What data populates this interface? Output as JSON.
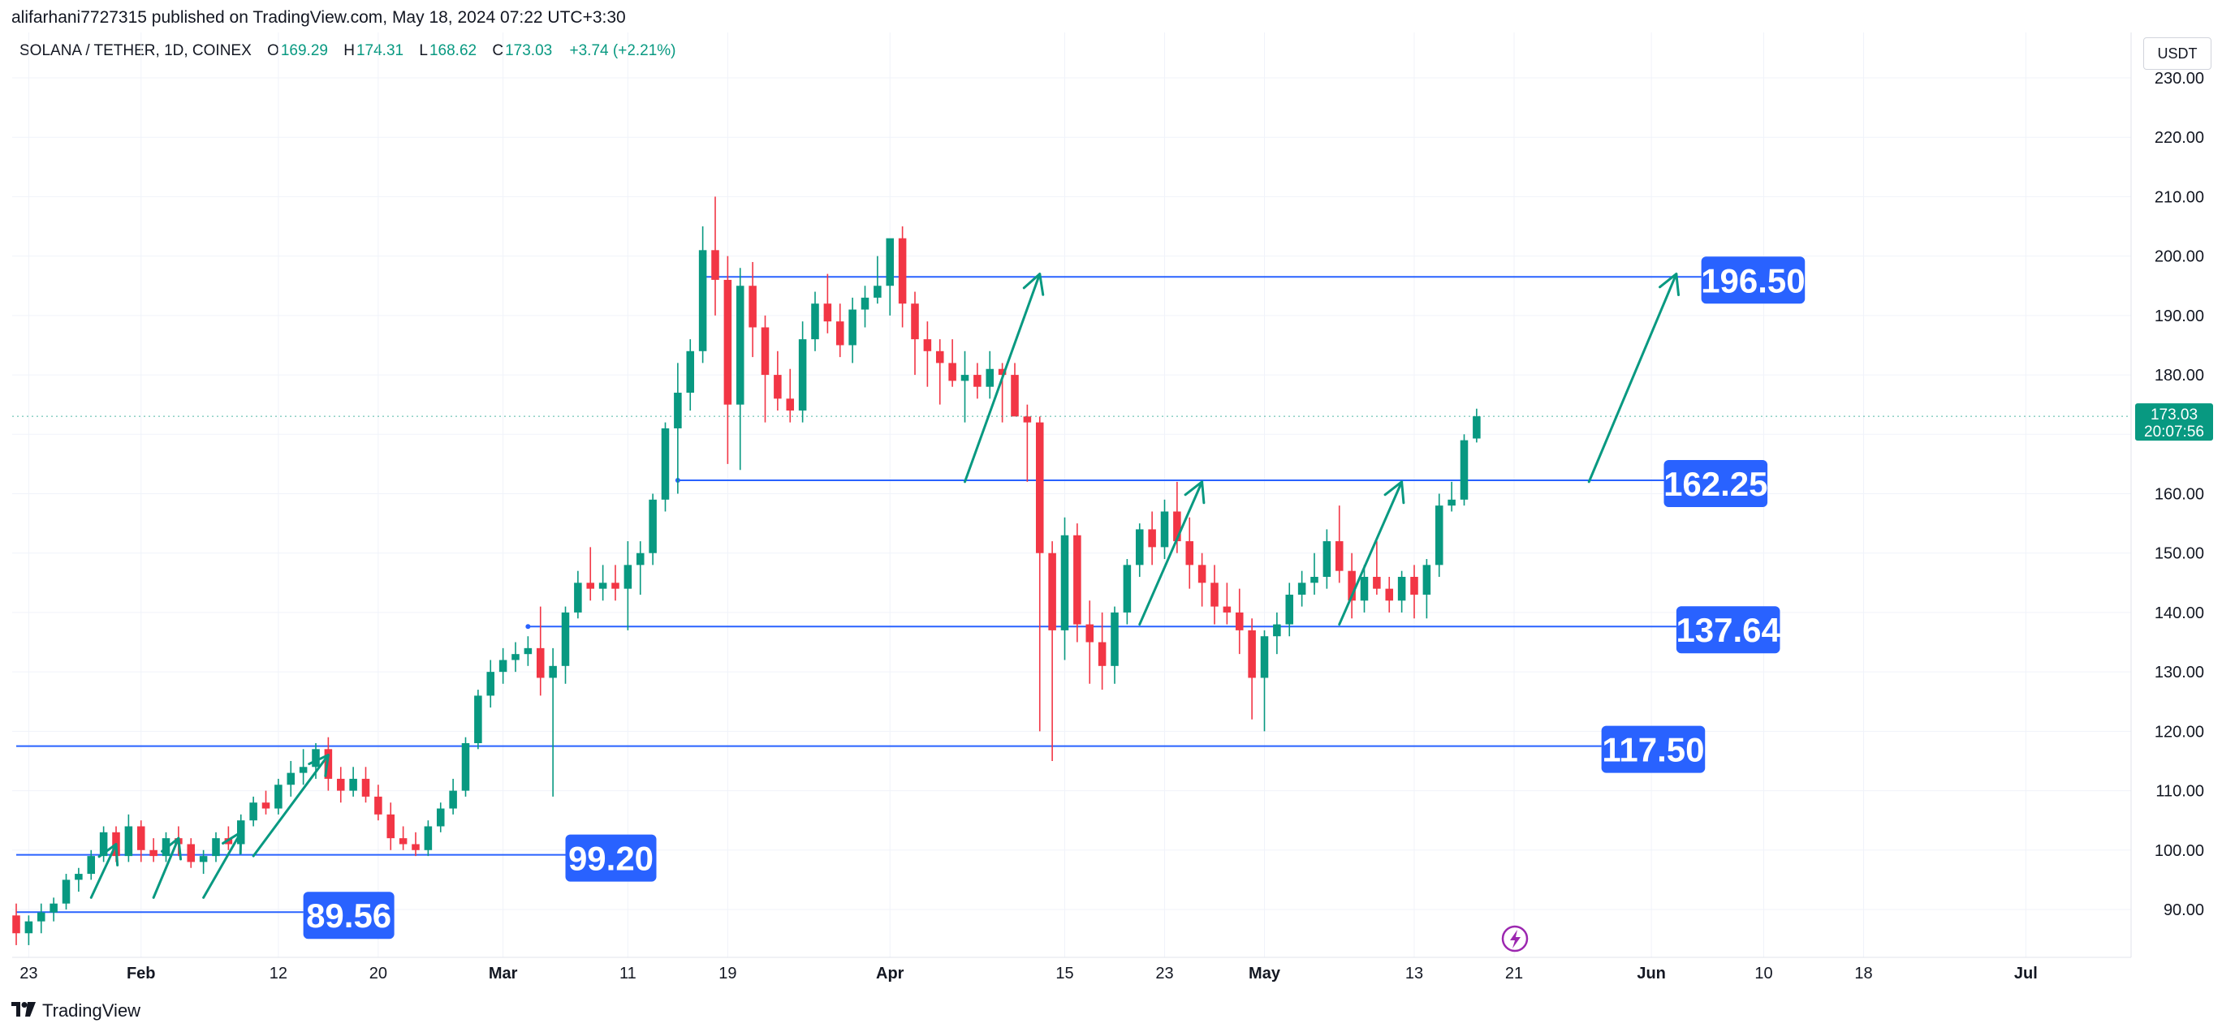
{
  "header": {
    "published": "alifarhani7727315 published on TradingView.com, May 18, 2024 07:22 UTC+3:30"
  },
  "legend": {
    "symbol": "SOLANA / TETHER, 1D, COINEX",
    "o_label": "O",
    "o": "169.29",
    "h_label": "H",
    "h": "174.31",
    "l_label": "L",
    "l": "168.62",
    "c_label": "C",
    "c": "173.03",
    "change": "+3.74 (+2.21%)"
  },
  "currency": "USDT",
  "price_tag": {
    "price": "173.03",
    "countdown": "20:07:56"
  },
  "footer": {
    "brand": "TradingView",
    "logo": "tradingview-logo"
  },
  "colors": {
    "up": "#089981",
    "down": "#f23645",
    "level_line": "#2962ff",
    "label_bg": "#2962ff",
    "arrow": "#089981",
    "grid": "#f0f3fa"
  },
  "chart_data": {
    "type": "candlestick",
    "ylim": [
      84,
      232
    ],
    "xlim": [
      "2024-01-22",
      "2024-07-08"
    ],
    "y_ticks": [
      "90.00",
      "100.00",
      "110.00",
      "120.00",
      "130.00",
      "140.00",
      "150.00",
      "160.00",
      "170.00",
      "180.00",
      "190.00",
      "200.00",
      "210.00",
      "220.00",
      "230.00"
    ],
    "x_ticks": [
      {
        "date": "2024-01-23",
        "label": "23"
      },
      {
        "date": "2024-02-01",
        "label": "Feb"
      },
      {
        "date": "2024-02-12",
        "label": "12"
      },
      {
        "date": "2024-02-20",
        "label": "20"
      },
      {
        "date": "2024-03-01",
        "label": "Mar"
      },
      {
        "date": "2024-03-11",
        "label": "11"
      },
      {
        "date": "2024-03-19",
        "label": "19"
      },
      {
        "date": "2024-04-01",
        "label": "Apr"
      },
      {
        "date": "2024-04-15",
        "label": "15"
      },
      {
        "date": "2024-04-23",
        "label": "23"
      },
      {
        "date": "2024-05-01",
        "label": "May"
      },
      {
        "date": "2024-05-13",
        "label": "13"
      },
      {
        "date": "2024-05-21",
        "label": "21"
      },
      {
        "date": "2024-06-01",
        "label": "Jun"
      },
      {
        "date": "2024-06-10",
        "label": "10"
      },
      {
        "date": "2024-06-18",
        "label": "18"
      },
      {
        "date": "2024-07-01",
        "label": "Jul"
      }
    ],
    "ohlc": [
      [
        "2024-01-22",
        89,
        91,
        84,
        86
      ],
      [
        "2024-01-23",
        86,
        89,
        84,
        88
      ],
      [
        "2024-01-24",
        88,
        91,
        86,
        89.5
      ],
      [
        "2024-01-25",
        89.5,
        92,
        88,
        91
      ],
      [
        "2024-01-26",
        91,
        96,
        90,
        95
      ],
      [
        "2024-01-27",
        95,
        97,
        93,
        96
      ],
      [
        "2024-01-28",
        96,
        100,
        95,
        99
      ],
      [
        "2024-01-29",
        99,
        104,
        98,
        103
      ],
      [
        "2024-01-30",
        103,
        104,
        98,
        99
      ],
      [
        "2024-01-31",
        99,
        106,
        98,
        104
      ],
      [
        "2024-02-01",
        104,
        105,
        98,
        100
      ],
      [
        "2024-02-02",
        100,
        102,
        98,
        99
      ],
      [
        "2024-02-03",
        99,
        103,
        98,
        102
      ],
      [
        "2024-02-04",
        102,
        104,
        99,
        101
      ],
      [
        "2024-02-05",
        101,
        102,
        97,
        98
      ],
      [
        "2024-02-06",
        98,
        100,
        96,
        99
      ],
      [
        "2024-02-07",
        99,
        103,
        98,
        102
      ],
      [
        "2024-02-08",
        102,
        104,
        100,
        101
      ],
      [
        "2024-02-09",
        101,
        106,
        100,
        105
      ],
      [
        "2024-02-10",
        105,
        109,
        104,
        108
      ],
      [
        "2024-02-11",
        108,
        110,
        106,
        107
      ],
      [
        "2024-02-12",
        107,
        112,
        106,
        111
      ],
      [
        "2024-02-13",
        111,
        115,
        109,
        113
      ],
      [
        "2024-02-14",
        113,
        117,
        111,
        114
      ],
      [
        "2024-02-15",
        114,
        118,
        112,
        117
      ],
      [
        "2024-02-16",
        117,
        119,
        110,
        112
      ],
      [
        "2024-02-17",
        112,
        114,
        108,
        110
      ],
      [
        "2024-02-18",
        110,
        114,
        109,
        112
      ],
      [
        "2024-02-19",
        112,
        114,
        108,
        109
      ],
      [
        "2024-02-20",
        109,
        111,
        105,
        106
      ],
      [
        "2024-02-21",
        106,
        108,
        100,
        102
      ],
      [
        "2024-02-22",
        102,
        104,
        100,
        101
      ],
      [
        "2024-02-23",
        101,
        103,
        99,
        100
      ],
      [
        "2024-02-24",
        100,
        105,
        99,
        104
      ],
      [
        "2024-02-25",
        104,
        108,
        103,
        107
      ],
      [
        "2024-02-26",
        107,
        112,
        106,
        110
      ],
      [
        "2024-02-27",
        110,
        119,
        109,
        118
      ],
      [
        "2024-02-28",
        118,
        127,
        117,
        126
      ],
      [
        "2024-02-29",
        126,
        132,
        124,
        130
      ],
      [
        "2024-03-01",
        130,
        134,
        128,
        132
      ],
      [
        "2024-03-02",
        132,
        135,
        130,
        133
      ],
      [
        "2024-03-03",
        133,
        136,
        131,
        134
      ],
      [
        "2024-03-04",
        134,
        141,
        126,
        129
      ],
      [
        "2024-03-05",
        129,
        134,
        109,
        131
      ],
      [
        "2024-03-06",
        131,
        141,
        128,
        140
      ],
      [
        "2024-03-07",
        140,
        147,
        139,
        145
      ],
      [
        "2024-03-08",
        145,
        151,
        142,
        144
      ],
      [
        "2024-03-09",
        144,
        148,
        142,
        145
      ],
      [
        "2024-03-10",
        145,
        148,
        142,
        144
      ],
      [
        "2024-03-11",
        144,
        152,
        137,
        148
      ],
      [
        "2024-03-12",
        148,
        152,
        143,
        150
      ],
      [
        "2024-03-13",
        150,
        160,
        148,
        159
      ],
      [
        "2024-03-14",
        159,
        172,
        157,
        171
      ],
      [
        "2024-03-15",
        171,
        182,
        160,
        177
      ],
      [
        "2024-03-16",
        177,
        186,
        174,
        184
      ],
      [
        "2024-03-17",
        184,
        205,
        182,
        201
      ],
      [
        "2024-03-18",
        201,
        210,
        190,
        196
      ],
      [
        "2024-03-19",
        196,
        200,
        165,
        175
      ],
      [
        "2024-03-20",
        175,
        198,
        164,
        195
      ],
      [
        "2024-03-21",
        195,
        199,
        183,
        188
      ],
      [
        "2024-03-22",
        188,
        190,
        172,
        180
      ],
      [
        "2024-03-23",
        180,
        184,
        174,
        176
      ],
      [
        "2024-03-24",
        176,
        181,
        172,
        174
      ],
      [
        "2024-03-25",
        174,
        189,
        172,
        186
      ],
      [
        "2024-03-26",
        186,
        194,
        184,
        192
      ],
      [
        "2024-03-27",
        192,
        197,
        187,
        189
      ],
      [
        "2024-03-28",
        189,
        192,
        183,
        185
      ],
      [
        "2024-03-29",
        185,
        193,
        182,
        191
      ],
      [
        "2024-03-30",
        191,
        195,
        188,
        193
      ],
      [
        "2024-03-31",
        193,
        200,
        192,
        195
      ],
      [
        "2024-04-01",
        195,
        202,
        190,
        203
      ],
      [
        "2024-04-02",
        203,
        205,
        188,
        192
      ],
      [
        "2024-04-03",
        192,
        194,
        180,
        186
      ],
      [
        "2024-04-04",
        186,
        189,
        178,
        184
      ],
      [
        "2024-04-05",
        184,
        186,
        175,
        182
      ],
      [
        "2024-04-06",
        182,
        186,
        178,
        179
      ],
      [
        "2024-04-07",
        179,
        184,
        172,
        180
      ],
      [
        "2024-04-08",
        180,
        182,
        176,
        178
      ],
      [
        "2024-04-09",
        178,
        184,
        176,
        181
      ],
      [
        "2024-04-10",
        181,
        182,
        172,
        180
      ],
      [
        "2024-04-11",
        180,
        182,
        174,
        173
      ],
      [
        "2024-04-12",
        173,
        175,
        162,
        172
      ],
      [
        "2024-04-13",
        172,
        173,
        120,
        150
      ],
      [
        "2024-04-14",
        150,
        152,
        115,
        137
      ],
      [
        "2024-04-15",
        137,
        156,
        132,
        153
      ],
      [
        "2024-04-16",
        153,
        155,
        135,
        138
      ],
      [
        "2024-04-17",
        138,
        142,
        128,
        135
      ],
      [
        "2024-04-18",
        135,
        140,
        127,
        131
      ],
      [
        "2024-04-19",
        131,
        141,
        128,
        140
      ],
      [
        "2024-04-20",
        140,
        149,
        138,
        148
      ],
      [
        "2024-04-21",
        148,
        155,
        146,
        154
      ],
      [
        "2024-04-22",
        154,
        157,
        148,
        151
      ],
      [
        "2024-04-23",
        151,
        159,
        149,
        157
      ],
      [
        "2024-04-24",
        157,
        162,
        150,
        152
      ],
      [
        "2024-04-25",
        152,
        156,
        144,
        148
      ],
      [
        "2024-04-26",
        148,
        150,
        141,
        145
      ],
      [
        "2024-04-27",
        145,
        148,
        138,
        141
      ],
      [
        "2024-04-28",
        141,
        145,
        138,
        140
      ],
      [
        "2024-04-29",
        140,
        144,
        133,
        137
      ],
      [
        "2024-04-30",
        137,
        139,
        122,
        129
      ],
      [
        "2024-05-01",
        129,
        137,
        120,
        136
      ],
      [
        "2024-05-02",
        136,
        140,
        133,
        138
      ],
      [
        "2024-05-03",
        138,
        145,
        136,
        143
      ],
      [
        "2024-05-04",
        143,
        147,
        141,
        145
      ],
      [
        "2024-05-05",
        145,
        150,
        143,
        146
      ],
      [
        "2024-05-06",
        146,
        154,
        144,
        152
      ],
      [
        "2024-05-07",
        152,
        158,
        145,
        147
      ],
      [
        "2024-05-08",
        147,
        150,
        139,
        142
      ],
      [
        "2024-05-09",
        142,
        148,
        140,
        146
      ],
      [
        "2024-05-10",
        146,
        152,
        143,
        144
      ],
      [
        "2024-05-11",
        144,
        146,
        140,
        142
      ],
      [
        "2024-05-12",
        142,
        147,
        140,
        146
      ],
      [
        "2024-05-13",
        146,
        148,
        139,
        143
      ],
      [
        "2024-05-14",
        143,
        149,
        139,
        148
      ],
      [
        "2024-05-15",
        148,
        160,
        146,
        158
      ],
      [
        "2024-05-16",
        158,
        162,
        157,
        159
      ],
      [
        "2024-05-17",
        159,
        170,
        158,
        169
      ],
      [
        "2024-05-18",
        169.29,
        174.31,
        168.62,
        173.03
      ]
    ],
    "levels": [
      {
        "label": "196.50",
        "price": 196.5,
        "from": "2024-03-17",
        "to": "2024-06-05"
      },
      {
        "label": "162.25",
        "price": 162.25,
        "from": "2024-03-15",
        "to": "2024-06-02"
      },
      {
        "label": "137.64",
        "price": 137.64,
        "from": "2024-03-03",
        "to": "2024-06-03"
      },
      {
        "label": "117.50",
        "price": 117.5,
        "from": "2024-01-22",
        "to": "2024-05-28"
      },
      {
        "label": "99.20",
        "price": 99.2,
        "from": "2024-01-22",
        "to": "2024-03-06"
      },
      {
        "label": "89.56",
        "price": 89.56,
        "from": "2024-01-22",
        "to": "2024-02-14"
      }
    ],
    "arrows": [
      {
        "from": [
          "2024-01-28",
          92
        ],
        "to": [
          "2024-01-30",
          101
        ]
      },
      {
        "from": [
          "2024-02-02",
          92
        ],
        "to": [
          "2024-02-04",
          102
        ]
      },
      {
        "from": [
          "2024-02-06",
          92
        ],
        "to": [
          "2024-02-09",
          103
        ]
      },
      {
        "from": [
          "2024-02-10",
          99
        ],
        "to": [
          "2024-02-16",
          116
        ]
      },
      {
        "from": [
          "2024-04-07",
          162
        ],
        "to": [
          "2024-04-13",
          197
        ]
      },
      {
        "from": [
          "2024-04-21",
          138
        ],
        "to": [
          "2024-04-26",
          162
        ]
      },
      {
        "from": [
          "2024-05-07",
          138
        ],
        "to": [
          "2024-05-12",
          162
        ]
      },
      {
        "from": [
          "2024-05-27",
          162
        ],
        "to": [
          "2024-06-03",
          197
        ]
      }
    ]
  }
}
